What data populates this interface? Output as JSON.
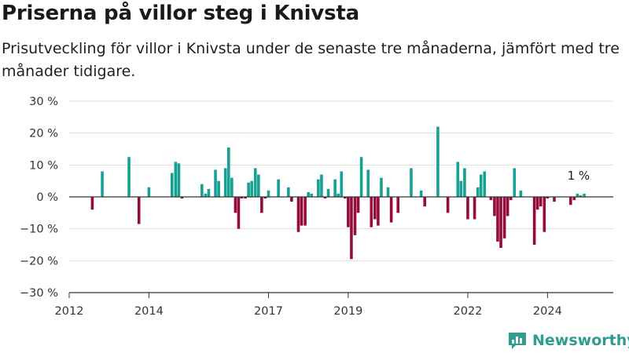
{
  "header": {
    "title": "Priserna på villor steg i Knivsta",
    "subtitle": "Prisutveckling för villor i Knivsta under de senaste tre månaderna, jämfört med tre månader tidigare."
  },
  "brand": {
    "name": "Newsworthy",
    "color": "#2e9c8e"
  },
  "colors": {
    "positive": "#17a195",
    "negative": "#950c3c",
    "grid": "#dddddd",
    "zero_line": "#333333"
  },
  "chart_data": {
    "type": "bar",
    "y_unit": "%",
    "ylim": [
      -30,
      30
    ],
    "y_ticks": [
      30,
      20,
      10,
      0,
      -10,
      -20,
      -30
    ],
    "y_tick_labels": [
      "30 %",
      "20 %",
      "10 %",
      "0 %",
      "−10 %",
      "−20 %",
      "−30 %"
    ],
    "xlim": [
      2012.0,
      2025.65
    ],
    "x_ticks": [
      2012,
      2014,
      2017,
      2019,
      2022,
      2024
    ],
    "x_tick_labels": [
      "2012",
      "2014",
      "2017",
      "2019",
      "2022",
      "2024"
    ],
    "annotation": {
      "text": "1 %",
      "x": 2024.78,
      "y": 1
    },
    "x": [
      2012.58,
      2012.83,
      2013.5,
      2013.75,
      2014.0,
      2014.58,
      2014.67,
      2014.75,
      2014.83,
      2015.33,
      2015.42,
      2015.5,
      2015.67,
      2015.75,
      2015.92,
      2016.0,
      2016.08,
      2016.17,
      2016.25,
      2016.33,
      2016.42,
      2016.5,
      2016.58,
      2016.67,
      2016.75,
      2016.83,
      2016.92,
      2017.0,
      2017.25,
      2017.5,
      2017.58,
      2017.75,
      2017.83,
      2017.92,
      2018.0,
      2018.08,
      2018.25,
      2018.33,
      2018.42,
      2018.5,
      2018.67,
      2018.75,
      2018.83,
      2018.92,
      2019.0,
      2019.08,
      2019.17,
      2019.25,
      2019.33,
      2019.5,
      2019.58,
      2019.67,
      2019.75,
      2019.83,
      2020.0,
      2020.08,
      2020.25,
      2020.58,
      2020.83,
      2020.92,
      2021.25,
      2021.5,
      2021.75,
      2021.83,
      2021.92,
      2022.0,
      2022.17,
      2022.25,
      2022.33,
      2022.42,
      2022.58,
      2022.67,
      2022.75,
      2022.83,
      2022.92,
      2023.0,
      2023.08,
      2023.17,
      2023.33,
      2023.67,
      2023.75,
      2023.83,
      2023.92,
      2024.0,
      2024.17,
      2024.58,
      2024.67,
      2024.75,
      2024.83,
      2024.92
    ],
    "values": [
      -4,
      8,
      12.5,
      -8.5,
      3,
      7.5,
      11,
      10.5,
      -0.5,
      4,
      1,
      2.5,
      8.5,
      5,
      9,
      15.5,
      6,
      -5,
      -10,
      -0.5,
      -0.5,
      4.5,
      5,
      9,
      7,
      -5,
      -0.5,
      2,
      5.5,
      3,
      -1.5,
      -11,
      -9,
      -9,
      1.5,
      1,
      5.5,
      7,
      -0.5,
      2.5,
      5.5,
      1,
      8,
      -0.5,
      -9.5,
      -19.5,
      -12,
      -5,
      12.5,
      8.5,
      -9.5,
      -7,
      -9,
      6,
      3,
      -8,
      -5,
      9,
      2,
      -3,
      22,
      -5,
      11,
      5,
      9,
      -7,
      -7,
      3,
      7,
      8,
      -1,
      -6,
      -14,
      -16,
      -13,
      -6,
      -1,
      9,
      2,
      -15,
      -4,
      -3,
      -11,
      -0.5,
      -1.5,
      -2.5,
      -1,
      1,
      0.5,
      1
    ]
  }
}
